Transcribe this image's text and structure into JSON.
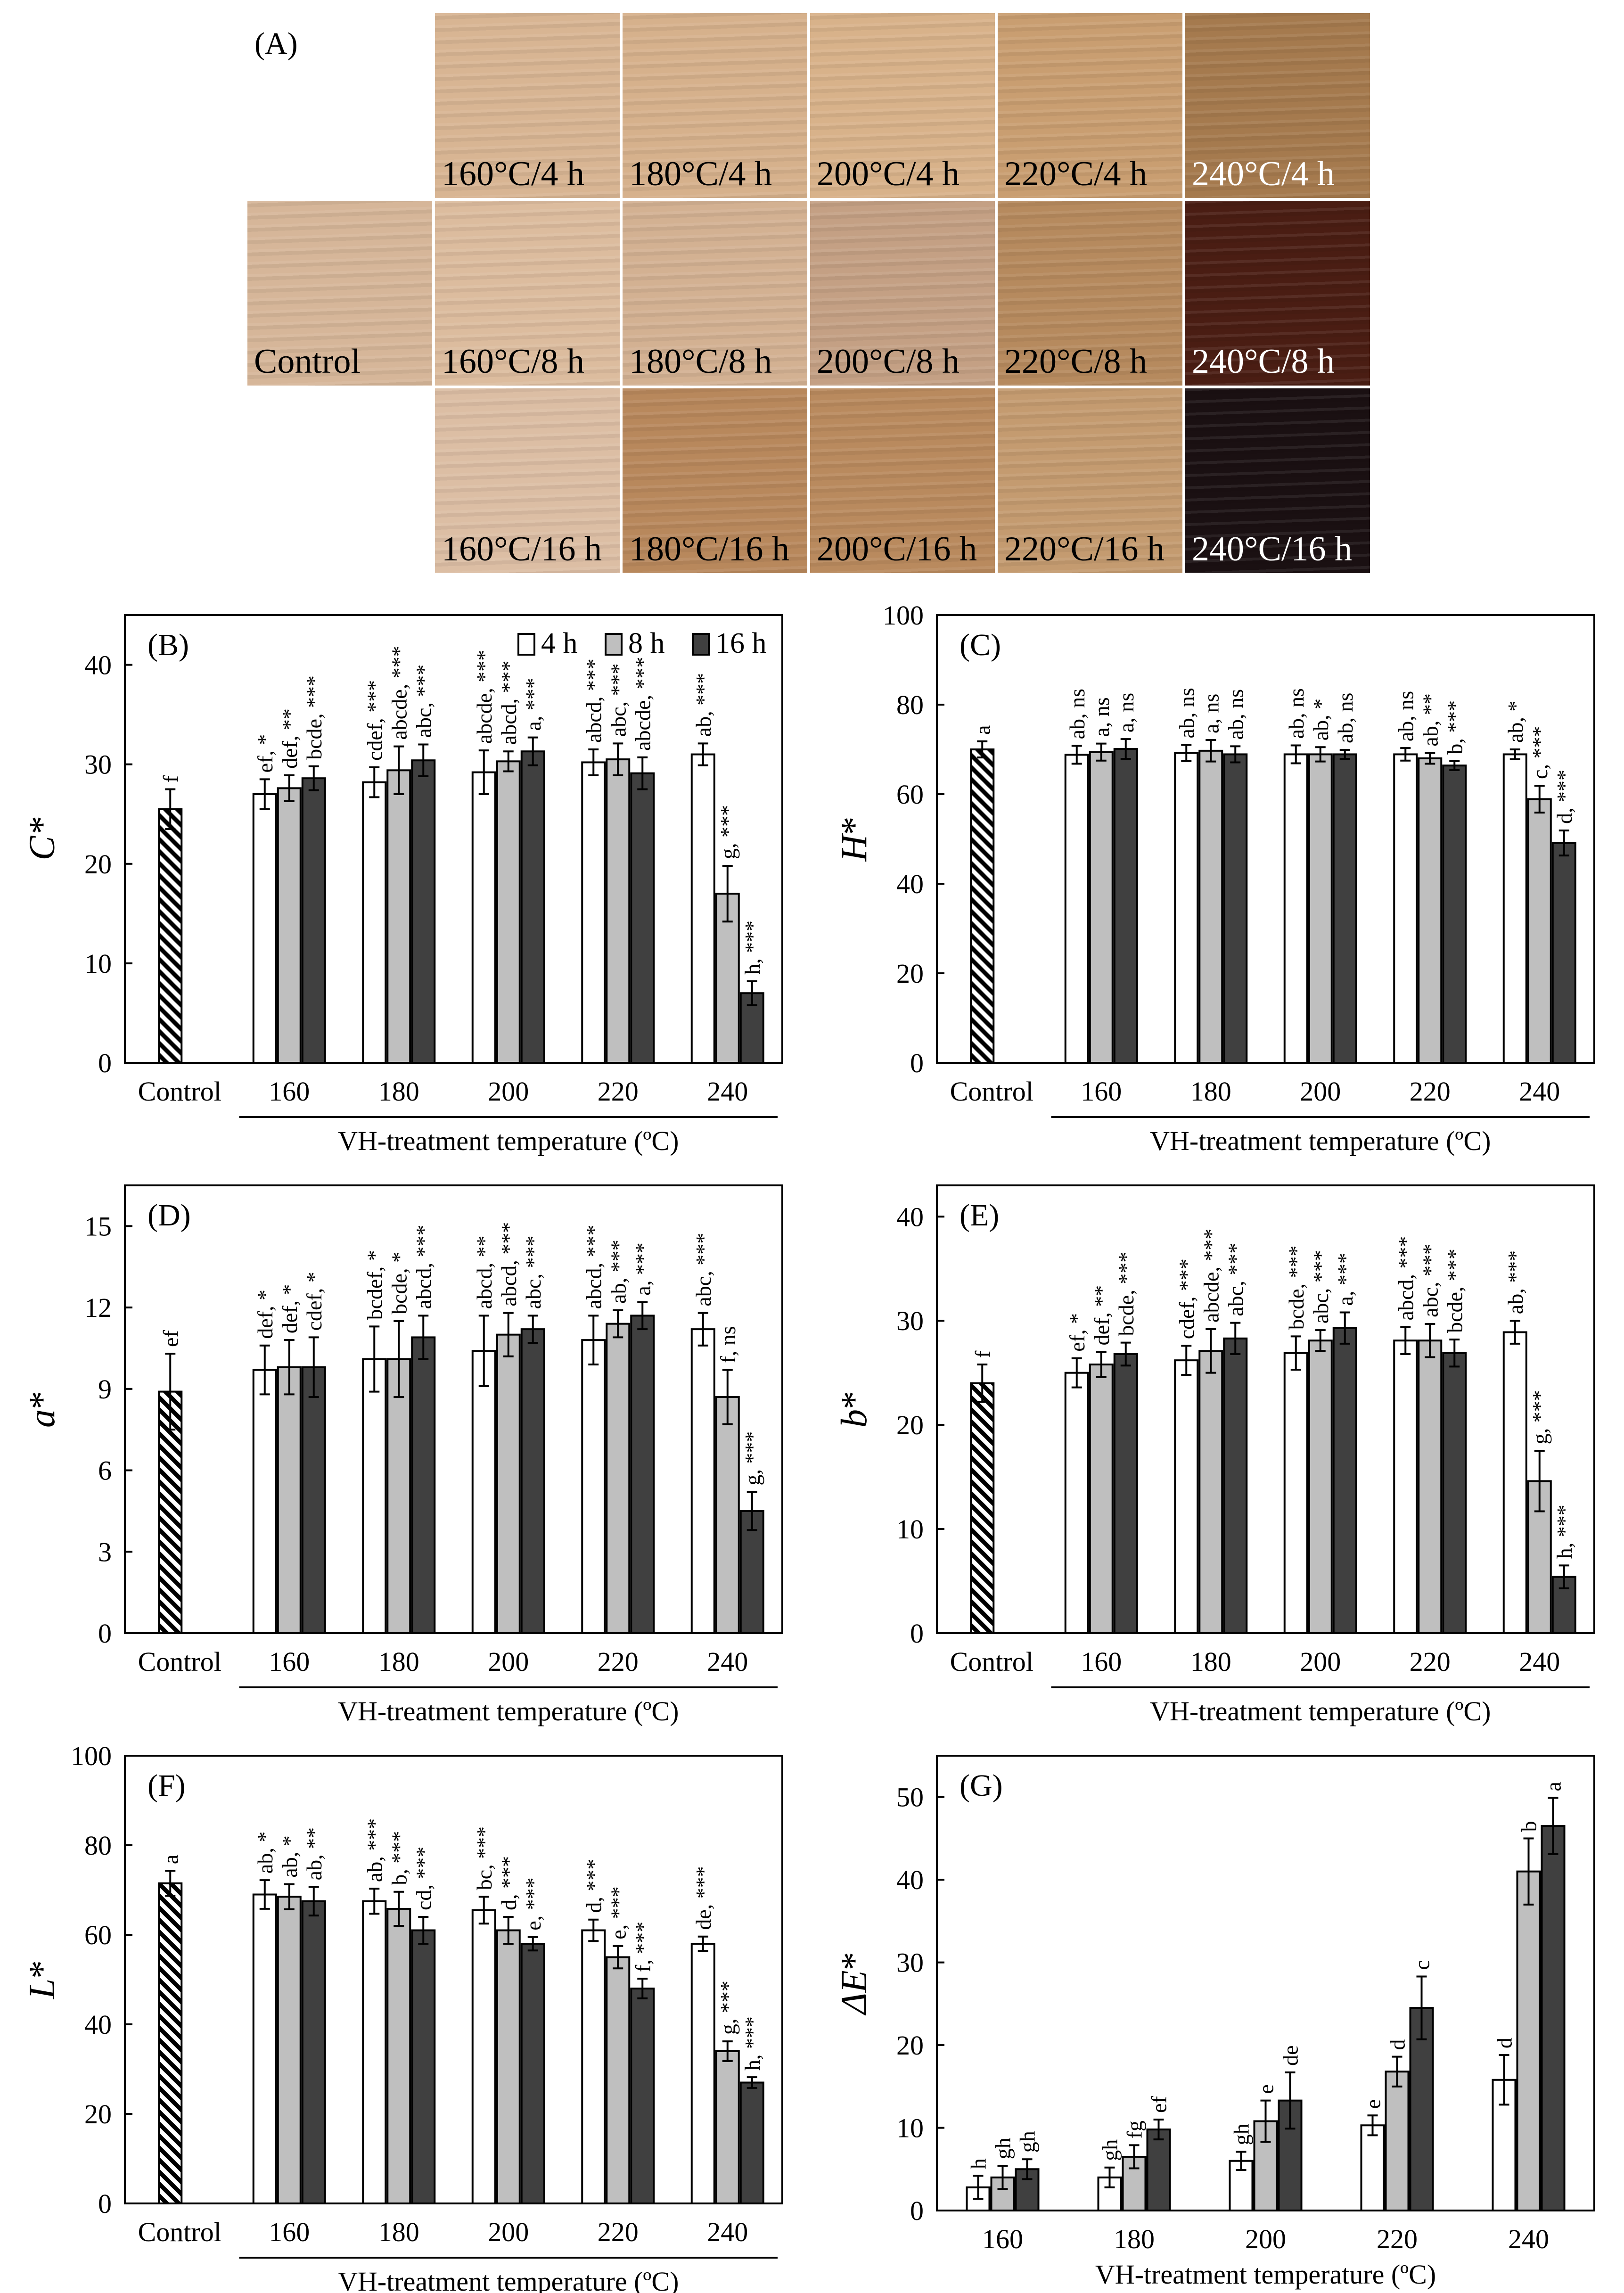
{
  "panelA": {
    "label": "(A)",
    "swatches": [
      {
        "label": "160°C/4 h",
        "color": "#d8b593",
        "text_color": "#000000"
      },
      {
        "label": "180°C/4 h",
        "color": "#d6b18c",
        "text_color": "#000000"
      },
      {
        "label": "200°C/4 h",
        "color": "#d8b28a",
        "text_color": "#000000"
      },
      {
        "label": "220°C/4 h",
        "color": "#c99e71",
        "text_color": "#000000"
      },
      {
        "label": "240°C/4 h",
        "color": "#a57a4e",
        "text_color": "#ffffff"
      },
      {
        "label": "Control",
        "color": "#d6b699",
        "text_color": "#000000"
      },
      {
        "label": "160°C/8 h",
        "color": "#dcbc9e",
        "text_color": "#000000"
      },
      {
        "label": "180°C/8 h",
        "color": "#d3b192",
        "text_color": "#000000"
      },
      {
        "label": "200°C/8 h",
        "color": "#c4a084",
        "text_color": "#000000"
      },
      {
        "label": "220°C/8 h",
        "color": "#b68a5e",
        "text_color": "#000000"
      },
      {
        "label": "240°C/8 h",
        "color": "#4a1d13",
        "text_color": "#ffffff"
      },
      {
        "label": "160°C/16 h",
        "color": "#dcbea4",
        "text_color": "#000000"
      },
      {
        "label": "180°C/16 h",
        "color": "#b8885c",
        "text_color": "#000000"
      },
      {
        "label": "200°C/16 h",
        "color": "#b98a5e",
        "text_color": "#000000"
      },
      {
        "label": "220°C/16 h",
        "color": "#c49b70",
        "text_color": "#000000"
      },
      {
        "label": "240°C/16 h",
        "color": "#1a1012",
        "text_color": "#ffffff"
      }
    ]
  },
  "legend": [
    "4 h",
    "8 h",
    "16 h"
  ],
  "colors": {
    "h4": "#ffffff",
    "h8": "#bfbfbf",
    "h16": "#404040",
    "control_hatch": "#000000"
  },
  "chart_data": [
    {
      "id": "B",
      "type": "bar",
      "panel_label": "(B)",
      "ylabel": "C*",
      "ylabel_letter": "C",
      "ylabel_star": "*",
      "italic_star": true,
      "xlabel": "VH-treatment temperature (ºC)",
      "ylim": [
        0,
        45
      ],
      "yticks": [
        0,
        10,
        20,
        30,
        40
      ],
      "show_legend": true,
      "control": {
        "label": "Control",
        "value": 25.5,
        "err": 2.0,
        "annotation": "f"
      },
      "categories": [
        "160",
        "180",
        "200",
        "220",
        "240"
      ],
      "series": [
        {
          "name": "4 h",
          "values": [
            27.0,
            28.2,
            29.2,
            30.2,
            31.0
          ],
          "errors": [
            1.5,
            1.5,
            2.2,
            1.3,
            1.1
          ],
          "annotations": [
            "ef, *",
            "cdef, ***",
            "abcde, ***",
            "abcd, ***",
            "ab, ***"
          ]
        },
        {
          "name": "8 h",
          "values": [
            27.6,
            29.4,
            30.3,
            30.5,
            17.0
          ],
          "errors": [
            1.3,
            2.4,
            1.0,
            1.6,
            2.8
          ],
          "annotations": [
            "def, **",
            "abcde, ***",
            "abcd, ***",
            "abc, ***",
            "g, ***"
          ]
        },
        {
          "name": "16 h",
          "values": [
            28.6,
            30.4,
            31.3,
            29.1,
            7.0
          ],
          "errors": [
            1.2,
            1.6,
            1.4,
            1.6,
            1.2
          ],
          "annotations": [
            "bcde, ***",
            "abc, ***",
            "a, ***",
            "abcde, ***",
            "h, ***"
          ]
        }
      ]
    },
    {
      "id": "C",
      "type": "bar",
      "panel_label": "(C)",
      "ylabel": "H*",
      "ylabel_letter": "H",
      "ylabel_star": "*",
      "italic_star": false,
      "xlabel": "VH-treatment temperature (ºC)",
      "ylim": [
        0,
        100
      ],
      "yticks": [
        0,
        20,
        40,
        60,
        80,
        100
      ],
      "show_legend": false,
      "control": {
        "label": "Control",
        "value": 70.0,
        "err": 1.8,
        "annotation": "a"
      },
      "categories": [
        "160",
        "180",
        "200",
        "220",
        "240"
      ],
      "series": [
        {
          "name": "4 h",
          "values": [
            68.8,
            69.2,
            68.9,
            68.9,
            68.9
          ],
          "errors": [
            2.0,
            1.8,
            2.0,
            1.4,
            1.1
          ],
          "annotations": [
            "ab, ns",
            "ab, ns",
            "ab, ns",
            "ab, ns",
            "ab, *"
          ]
        },
        {
          "name": "8 h",
          "values": [
            69.4,
            69.7,
            68.9,
            68.0,
            58.9
          ],
          "errors": [
            1.9,
            2.4,
            1.6,
            1.2,
            3.0
          ],
          "annotations": [
            "a, ns",
            "a, ns",
            "ab, *",
            "ab, **",
            "c, ***"
          ]
        },
        {
          "name": "16 h",
          "values": [
            70.1,
            68.9,
            68.9,
            66.4,
            49.1
          ],
          "errors": [
            2.2,
            1.8,
            1.0,
            1.0,
            2.8
          ],
          "annotations": [
            "a, ns",
            "ab, ns",
            "ab, ns",
            "b, ***",
            "d, ***"
          ]
        }
      ]
    },
    {
      "id": "D",
      "type": "bar",
      "panel_label": "(D)",
      "ylabel": "a*",
      "ylabel_letter": "a",
      "ylabel_star": "*",
      "italic_star": false,
      "xlabel": "VH-treatment temperature (ºC)",
      "ylim": [
        0,
        16.5
      ],
      "yticks": [
        0,
        3,
        6,
        9,
        12,
        15
      ],
      "show_legend": false,
      "control": {
        "label": "Control",
        "value": 8.9,
        "err": 1.4,
        "annotation": "ef"
      },
      "categories": [
        "160",
        "180",
        "200",
        "220",
        "240"
      ],
      "series": [
        {
          "name": "4 h",
          "values": [
            9.7,
            10.1,
            10.4,
            10.8,
            11.2
          ],
          "errors": [
            0.9,
            1.2,
            1.3,
            0.9,
            0.6
          ],
          "annotations": [
            "def, *",
            "bcdef, *",
            "abcd, **",
            "abcd, ***",
            "abc, ***"
          ]
        },
        {
          "name": "8 h",
          "values": [
            9.8,
            10.1,
            11.0,
            11.4,
            8.7
          ],
          "errors": [
            1.0,
            1.4,
            0.8,
            0.5,
            1.0
          ],
          "annotations": [
            "def, *",
            "bcde, *",
            "abcd, ***",
            "ab, ***",
            "f, ns"
          ]
        },
        {
          "name": "16 h",
          "values": [
            9.8,
            10.9,
            11.2,
            11.7,
            4.5
          ],
          "errors": [
            1.1,
            0.8,
            0.5,
            0.5,
            0.7
          ],
          "annotations": [
            "cdef, *",
            "abcd, ***",
            "abc, ***",
            "a, ***",
            "g, ***"
          ]
        }
      ]
    },
    {
      "id": "E",
      "type": "bar",
      "panel_label": "(E)",
      "ylabel": "b*",
      "ylabel_letter": "b",
      "ylabel_star": "*",
      "italic_star": false,
      "xlabel": "VH-treatment temperature (ºC)",
      "ylim": [
        0,
        43
      ],
      "yticks": [
        0,
        10,
        20,
        30,
        40
      ],
      "show_legend": false,
      "control": {
        "label": "Control",
        "value": 24.0,
        "err": 1.8,
        "annotation": "f"
      },
      "categories": [
        "160",
        "180",
        "200",
        "220",
        "240"
      ],
      "series": [
        {
          "name": "4 h",
          "values": [
            25.0,
            26.2,
            26.9,
            28.1,
            28.9
          ],
          "errors": [
            1.4,
            1.4,
            1.6,
            1.3,
            1.1
          ],
          "annotations": [
            "ef, *",
            "cdef, ***",
            "bcde, ***",
            "abcd, ***",
            "ab, ***"
          ]
        },
        {
          "name": "8 h",
          "values": [
            25.8,
            27.1,
            28.1,
            28.1,
            14.6
          ],
          "errors": [
            1.2,
            2.1,
            1.0,
            1.6,
            2.9
          ],
          "annotations": [
            "def, **",
            "abcde, ***",
            "abc, ***",
            "abc, ***",
            "g, ***"
          ]
        },
        {
          "name": "16 h",
          "values": [
            26.8,
            28.3,
            29.3,
            26.9,
            5.4
          ],
          "errors": [
            1.1,
            1.5,
            1.5,
            1.3,
            1.1
          ],
          "annotations": [
            "bcde, ***",
            "abc, ***",
            "a, ***",
            "bcde, ***",
            "h, ***"
          ]
        }
      ]
    },
    {
      "id": "F",
      "type": "bar",
      "panel_label": "(F)",
      "ylabel": "L*",
      "ylabel_letter": "L",
      "ylabel_star": "*",
      "italic_star": false,
      "xlabel": "VH-treatment temperature (ºC)",
      "ylim": [
        0,
        100
      ],
      "yticks": [
        0,
        20,
        40,
        60,
        80,
        100
      ],
      "show_legend": false,
      "control": {
        "label": "Control",
        "value": 71.5,
        "err": 2.8,
        "annotation": "a"
      },
      "categories": [
        "160",
        "180",
        "200",
        "220",
        "240"
      ],
      "series": [
        {
          "name": "4 h",
          "values": [
            69.0,
            67.5,
            65.5,
            61.0,
            58.0
          ],
          "errors": [
            3.2,
            2.8,
            3.0,
            2.4,
            1.6
          ],
          "annotations": [
            "ab, *",
            "ab, ***",
            "bc, ***",
            "d, ***",
            "de, ***"
          ]
        },
        {
          "name": "8 h",
          "values": [
            68.5,
            65.8,
            61.0,
            55.0,
            34.0
          ],
          "errors": [
            2.8,
            3.8,
            3.0,
            2.5,
            2.2
          ],
          "annotations": [
            "ab, *",
            "b, ***",
            "d, ***",
            "e, ***",
            "g, ***"
          ]
        },
        {
          "name": "16 h",
          "values": [
            67.5,
            61.0,
            58.0,
            48.0,
            27.0
          ],
          "errors": [
            3.2,
            3.0,
            1.5,
            2.2,
            1.2
          ],
          "annotations": [
            "ab, **",
            "cd, ***",
            "e, ***",
            "f, ***",
            "h, ***"
          ]
        }
      ]
    },
    {
      "id": "G",
      "type": "bar",
      "panel_label": "(G)",
      "ylabel": "ΔE*",
      "ylabel_letter": "ΔE",
      "ylabel_star": "*",
      "italic_star": false,
      "xlabel": "VH-treatment temperature (ºC)",
      "ylim": [
        0,
        55
      ],
      "yticks": [
        0,
        10,
        20,
        30,
        40,
        50
      ],
      "show_legend": false,
      "control": null,
      "categories": [
        "160",
        "180",
        "200",
        "220",
        "240"
      ],
      "series": [
        {
          "name": "4 h",
          "values": [
            2.8,
            4.0,
            6.0,
            10.3,
            15.8
          ],
          "errors": [
            1.4,
            1.2,
            1.1,
            1.2,
            3.0
          ],
          "annotations": [
            "h",
            "gh",
            "gh",
            "e",
            "d"
          ]
        },
        {
          "name": "8 h",
          "values": [
            4.0,
            6.5,
            10.8,
            16.8,
            41.0
          ],
          "errors": [
            1.4,
            1.4,
            2.5,
            1.8,
            4.0
          ],
          "annotations": [
            "gh",
            "fg",
            "e",
            "d",
            "b"
          ]
        },
        {
          "name": "16 h",
          "values": [
            5.0,
            9.8,
            13.3,
            24.5,
            46.5
          ],
          "errors": [
            1.2,
            1.2,
            3.4,
            3.8,
            3.4
          ],
          "annotations": [
            "gh",
            "ef",
            "de",
            "c",
            "a"
          ]
        }
      ]
    }
  ]
}
